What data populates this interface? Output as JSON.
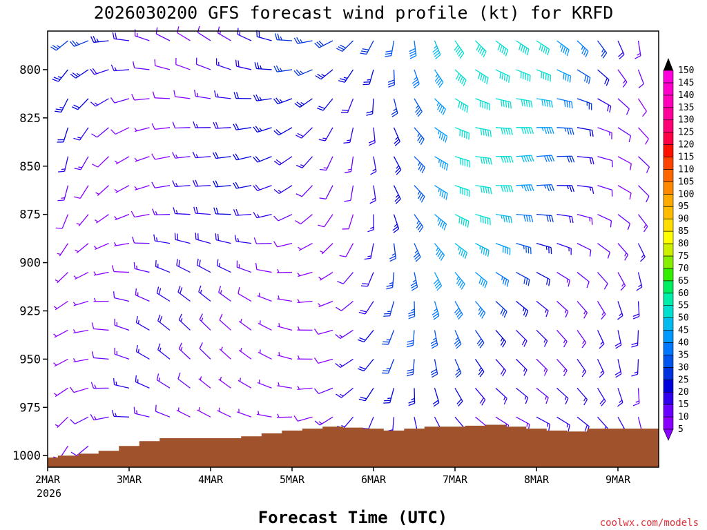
{
  "chart_data": {
    "type": "wind-barb-time-height",
    "title": "2026030200 GFS forecast wind profile (kt) for KRFD",
    "xlabel": "Forecast Time (UTC)",
    "ylabel": "",
    "year_label": "2026",
    "credit": "coolwx.com/models",
    "x_ticks": [
      "2MAR",
      "3MAR",
      "4MAR",
      "5MAR",
      "6MAR",
      "7MAR",
      "8MAR",
      "9MAR"
    ],
    "xlim_days": [
      0,
      7.5
    ],
    "y_ticks": [
      800,
      825,
      850,
      875,
      900,
      925,
      950,
      975,
      1000
    ],
    "ylim_hpa": [
      780,
      1006
    ],
    "barb_levels_hpa": [
      785,
      800,
      815,
      830,
      845,
      860,
      875,
      890,
      905,
      920,
      935,
      950,
      965,
      980,
      995
    ],
    "barb_interval_hours": 6,
    "colorbar_levels_kt": [
      5,
      10,
      15,
      20,
      25,
      30,
      35,
      40,
      45,
      50,
      55,
      60,
      65,
      70,
      75,
      80,
      85,
      90,
      95,
      100,
      105,
      110,
      115,
      120,
      125,
      130,
      135,
      140,
      145,
      150
    ],
    "colorbar_colors": [
      "#8a00ff",
      "#6a00ff",
      "#3000ee",
      "#0000dd",
      "#0033dd",
      "#0055ee",
      "#0077ff",
      "#0099ff",
      "#00bbee",
      "#00e0d0",
      "#00eeaa",
      "#00ee60",
      "#33ee00",
      "#88ee00",
      "#ccf000",
      "#ffff00",
      "#ffdd00",
      "#ffbb00",
      "#ffaa00",
      "#ff8800",
      "#ff6600",
      "#ff4400",
      "#ff1100",
      "#ff0044",
      "#ff0077",
      "#ff0099",
      "#ff00bb",
      "#ff00cc",
      "#ff00dd",
      "#ff00ee"
    ],
    "surface_pressure_hpa": {
      "hours": [
        0,
        6,
        12,
        18,
        24,
        30,
        36,
        42,
        48,
        54,
        60,
        66,
        72,
        78,
        84,
        90,
        96,
        102,
        108,
        114,
        120,
        126,
        132,
        138,
        144,
        150,
        156,
        162,
        168,
        174,
        180
      ],
      "values": [
        1001,
        1000,
        999,
        997.5,
        995,
        992.5,
        991,
        991,
        991,
        991,
        990,
        988.5,
        987,
        986,
        985,
        985.5,
        986,
        987,
        986,
        985,
        985,
        984.5,
        984,
        985,
        986,
        987,
        987.5,
        986,
        986,
        986,
        986
      ]
    },
    "ground_color": "#a0522d"
  }
}
